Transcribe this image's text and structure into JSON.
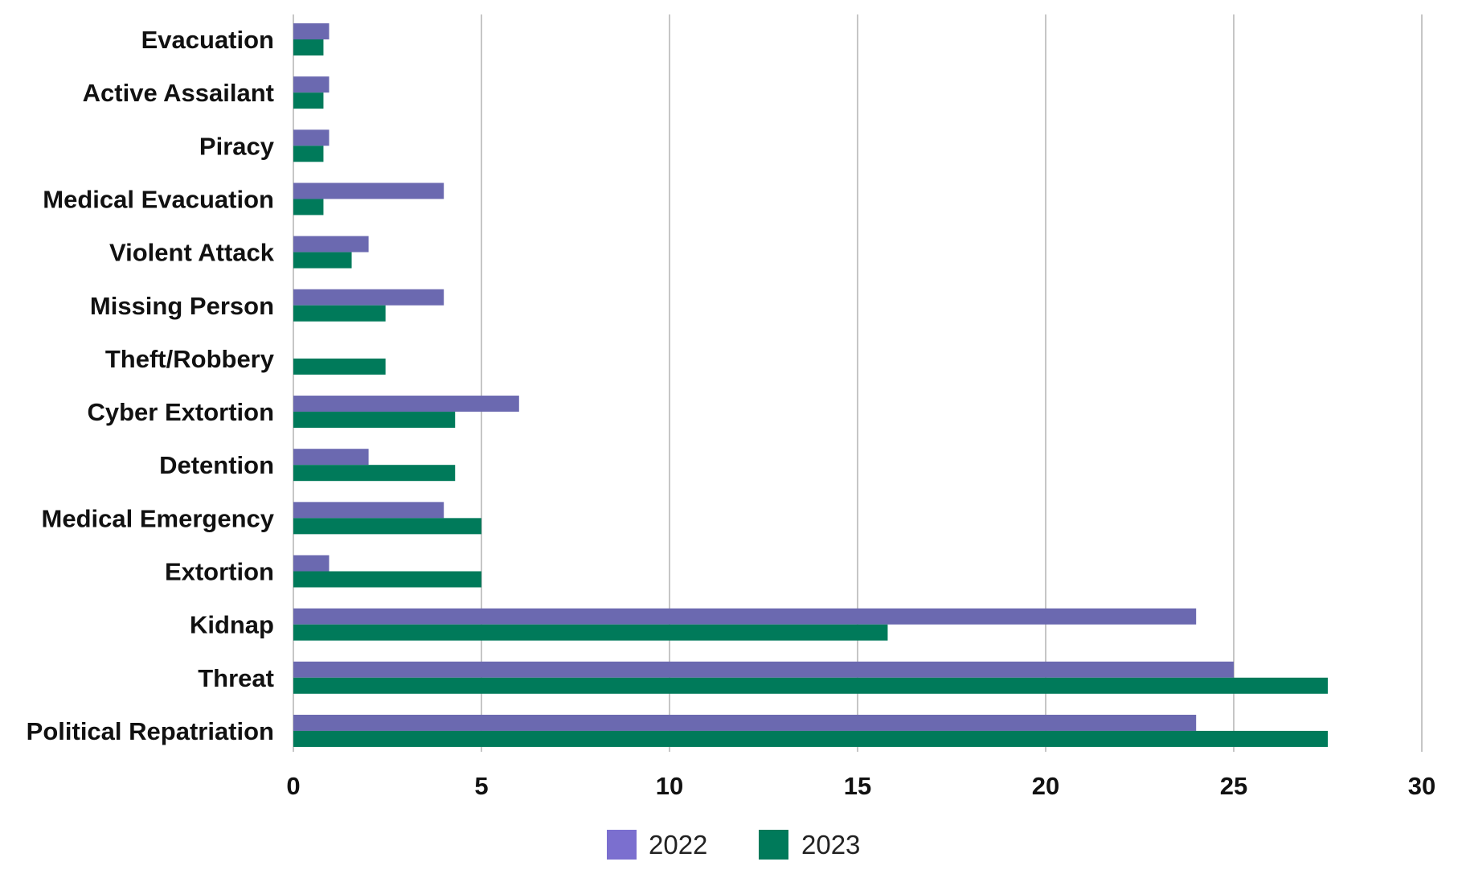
{
  "chart_data": {
    "type": "bar",
    "orientation": "horizontal",
    "categories": [
      "Evacuation",
      "Active Assailant",
      "Piracy",
      "Medical Evacuation",
      "Violent Attack",
      "Missing Person",
      "Theft/Robbery",
      "Cyber Extortion",
      "Detention",
      "Medical Emergency",
      "Extortion",
      "Kidnap",
      "Threat",
      "Political Repatriation"
    ],
    "series": [
      {
        "name": "2022",
        "color": "#6b69b0",
        "legend_color": "#7b6fcf",
        "values": [
          0.95,
          0.95,
          0.95,
          4,
          2,
          4,
          0,
          6,
          2,
          4,
          0.95,
          24,
          25,
          24
        ]
      },
      {
        "name": "2023",
        "color": "#007a5a",
        "legend_color": "#007a5a",
        "values": [
          0.8,
          0.8,
          0.8,
          0.8,
          1.55,
          2.45,
          2.45,
          4.3,
          4.3,
          5,
          5,
          15.8,
          27.5,
          27.5
        ]
      }
    ],
    "xlim": [
      0,
      30
    ],
    "xticks": [
      "0",
      "5",
      "10",
      "15",
      "20",
      "25",
      "30"
    ],
    "title": "",
    "xlabel": "",
    "ylabel": "",
    "grid": "vertical",
    "legend": "bottom-center"
  }
}
